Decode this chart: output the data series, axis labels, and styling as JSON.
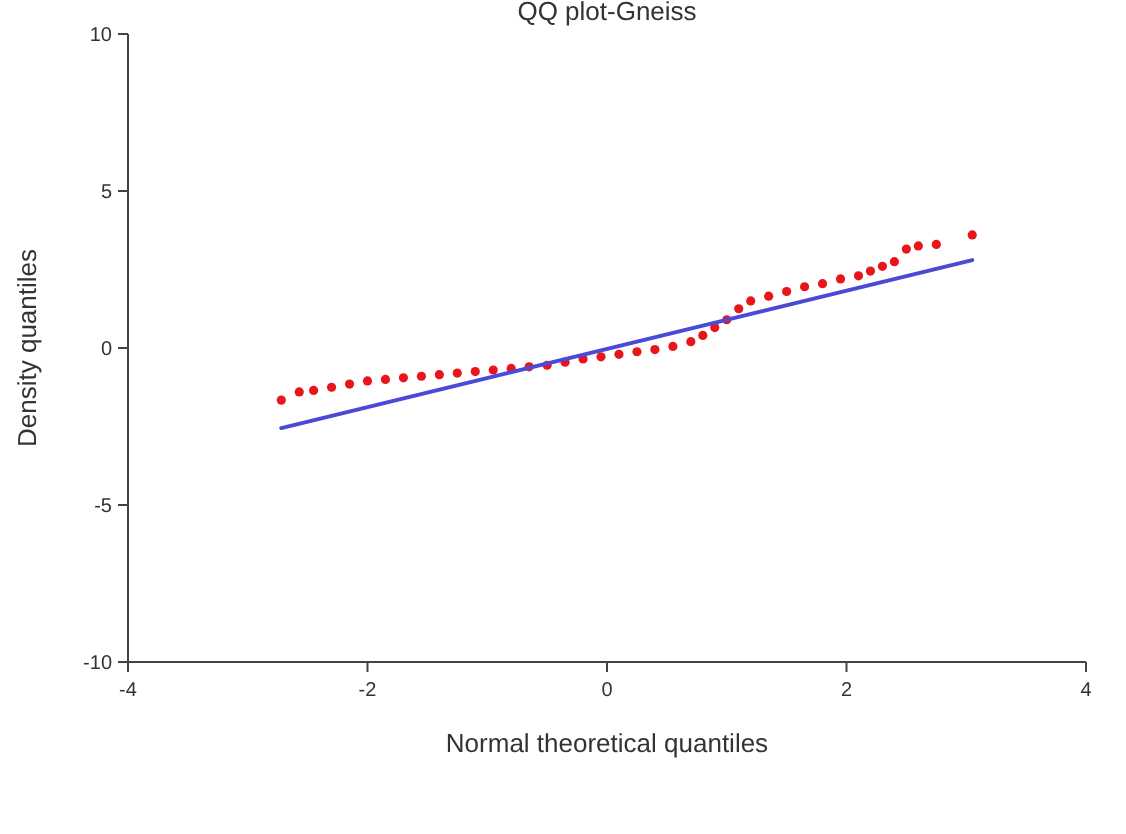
{
  "chart_data": {
    "type": "scatter",
    "title": "QQ plot-Gneiss",
    "xlabel": "Normal theoretical quantiles",
    "ylabel": "Density quantiles",
    "xlim": [
      -4,
      4
    ],
    "ylim": [
      -10,
      10
    ],
    "xticks": [
      -4,
      -2,
      0,
      2,
      4
    ],
    "yticks": [
      -10,
      -5,
      0,
      5,
      10
    ],
    "grid": false,
    "series": [
      {
        "color": "#e8161b",
        "marker": "circle",
        "x": [
          -2.72,
          -2.57,
          -2.45,
          -2.3,
          -2.15,
          -2.0,
          -1.85,
          -1.7,
          -1.55,
          -1.4,
          -1.25,
          -1.1,
          -0.95,
          -0.8,
          -0.65,
          -0.5,
          -0.35,
          -0.2,
          -0.05,
          0.1,
          0.25,
          0.4,
          0.55,
          0.7,
          0.8,
          0.9,
          1.0,
          1.1,
          1.2,
          1.35,
          1.5,
          1.65,
          1.8,
          1.95,
          2.1,
          2.2,
          2.3,
          2.4,
          2.5,
          2.6,
          2.75,
          3.05
        ],
        "values": [
          -1.66,
          -1.4,
          -1.35,
          -1.25,
          -1.15,
          -1.05,
          -1.0,
          -0.95,
          -0.9,
          -0.85,
          -0.8,
          -0.75,
          -0.7,
          -0.65,
          -0.6,
          -0.55,
          -0.45,
          -0.35,
          -0.28,
          -0.2,
          -0.12,
          -0.05,
          0.05,
          0.2,
          0.4,
          0.65,
          0.9,
          1.25,
          1.5,
          1.65,
          1.8,
          1.95,
          2.05,
          2.2,
          2.3,
          2.45,
          2.6,
          2.75,
          3.15,
          3.25,
          3.3,
          3.6
        ]
      },
      {
        "type": "line",
        "color": "#4a4ad8",
        "x": [
          -2.72,
          3.05
        ],
        "values": [
          -2.55,
          2.8
        ]
      }
    ]
  }
}
